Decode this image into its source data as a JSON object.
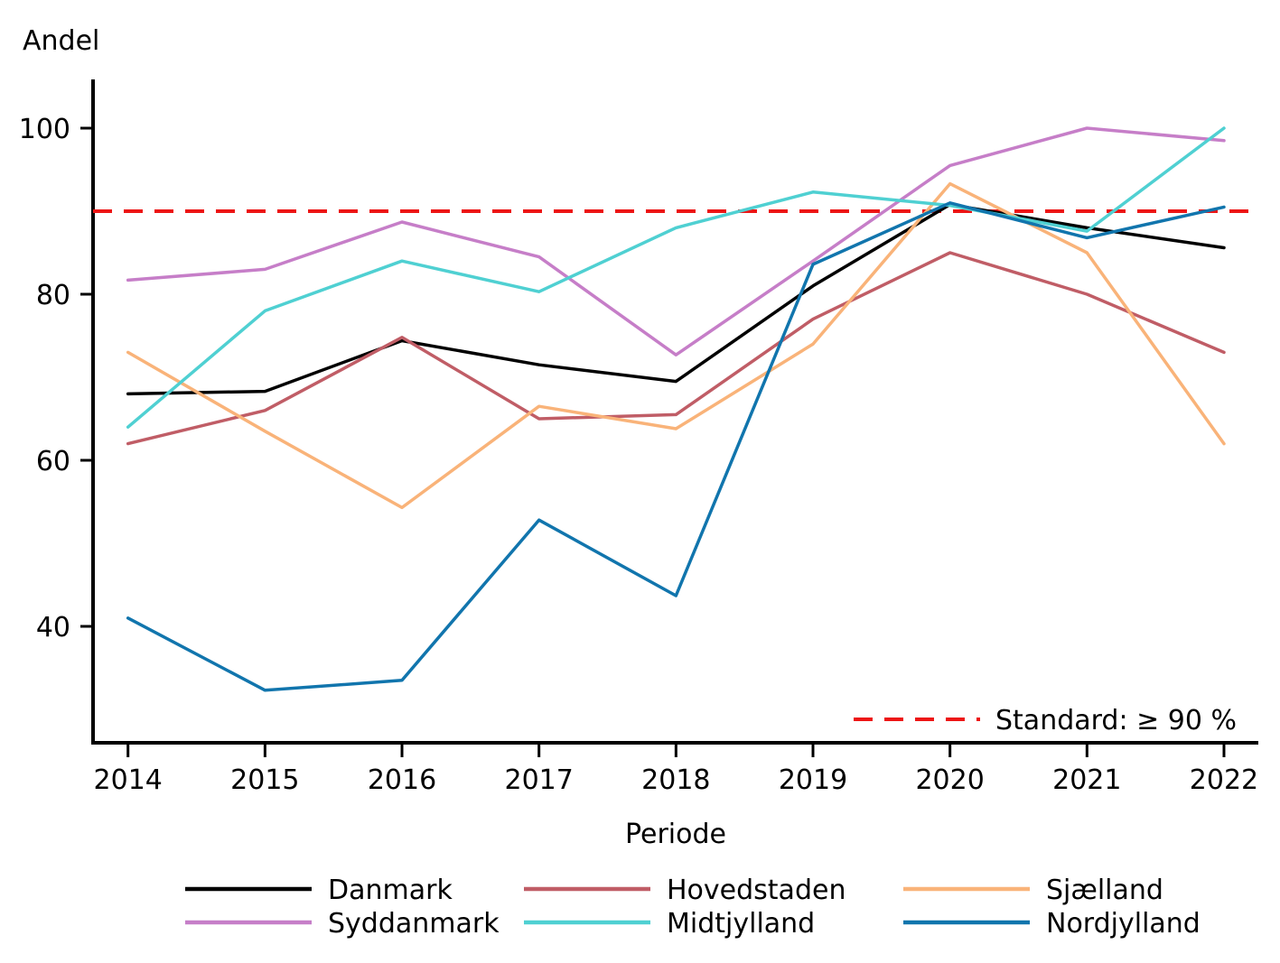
{
  "chart_data": {
    "type": "line",
    "title": "",
    "ylabel": "Andel",
    "xlabel": "Periode",
    "x": [
      2014,
      2015,
      2016,
      2017,
      2018,
      2019,
      2020,
      2021,
      2022
    ],
    "yticks": [
      40,
      60,
      80,
      100
    ],
    "ylim": [
      26,
      106
    ],
    "grid": false,
    "legend_position": "bottom",
    "series": [
      {
        "name": "Danmark",
        "color": "#000000",
        "values": [
          68,
          68.3,
          74.4,
          71.5,
          69.5,
          81,
          90.8,
          88,
          85.6
        ]
      },
      {
        "name": "Hovedstaden",
        "color": "#c05d66",
        "values": [
          62,
          66,
          74.8,
          65,
          65.5,
          77,
          85,
          80,
          73
        ]
      },
      {
        "name": "Sjælland",
        "color": "#f9b379",
        "values": [
          73,
          63.5,
          54.3,
          66.5,
          63.8,
          74,
          93.3,
          85,
          62
        ]
      },
      {
        "name": "Syddanmark",
        "color": "#c67ec8",
        "values": [
          81.7,
          83,
          88.7,
          84.5,
          72.7,
          84,
          95.5,
          100,
          98.5
        ]
      },
      {
        "name": "Midtjylland",
        "color": "#4fd0d2",
        "values": [
          64,
          78,
          84,
          80.3,
          88,
          92.3,
          90.7,
          87.6,
          100
        ]
      },
      {
        "name": "Nordjylland",
        "color": "#1175ad",
        "values": [
          41,
          32.3,
          33.5,
          52.8,
          43.7,
          83.6,
          91,
          86.8,
          90.5
        ]
      }
    ],
    "reference_line": {
      "value": 90,
      "label": "Standard: ≥ 90 %",
      "color": "#ed1515",
      "style": "dashed"
    }
  },
  "legend": {
    "rows": [
      [
        "Danmark",
        "Hovedstaden",
        "Sjælland"
      ],
      [
        "Syddanmark",
        "Midtjylland",
        "Nordjylland"
      ]
    ]
  },
  "colors": {
    "axis": "#000000",
    "text": "#000000",
    "background": "#ffffff"
  }
}
